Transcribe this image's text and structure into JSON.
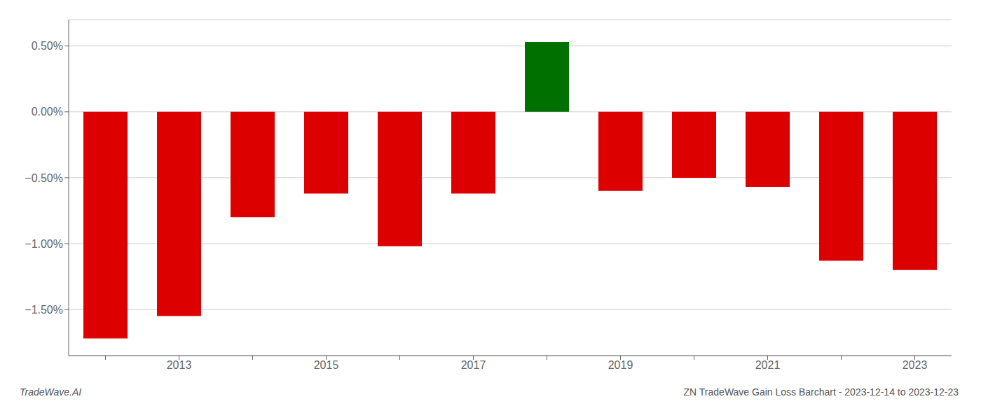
{
  "chart_data": {
    "type": "bar",
    "title": "ZN TradeWave Gain Loss Barchart - 2023-12-14 to 2023-12-23",
    "annotations": [
      "TradeWave.AI"
    ],
    "categories": [
      null,
      "2013",
      null,
      "2015",
      null,
      "2017",
      null,
      "2019",
      null,
      "2021",
      null,
      "2023"
    ],
    "values": [
      -1.72,
      -1.55,
      -0.8,
      -0.62,
      -1.02,
      -0.62,
      0.53,
      -0.6,
      -0.5,
      -0.57,
      -1.13,
      -1.2
    ],
    "colors": [
      "#dd0000",
      "#dd0000",
      "#dd0000",
      "#dd0000",
      "#dd0000",
      "#dd0000",
      "#007000",
      "#dd0000",
      "#dd0000",
      "#dd0000",
      "#dd0000",
      "#dd0000"
    ],
    "ylim": [
      -1.85,
      0.7
    ],
    "yticks": [
      {
        "value": 0.5,
        "label": "0.50%"
      },
      {
        "value": 0.0,
        "label": "0.00%"
      },
      {
        "value": -0.5,
        "label": "−0.50%"
      },
      {
        "value": -1.0,
        "label": "−1.00%"
      },
      {
        "value": -1.5,
        "label": "−1.50%"
      }
    ],
    "grid": true
  }
}
